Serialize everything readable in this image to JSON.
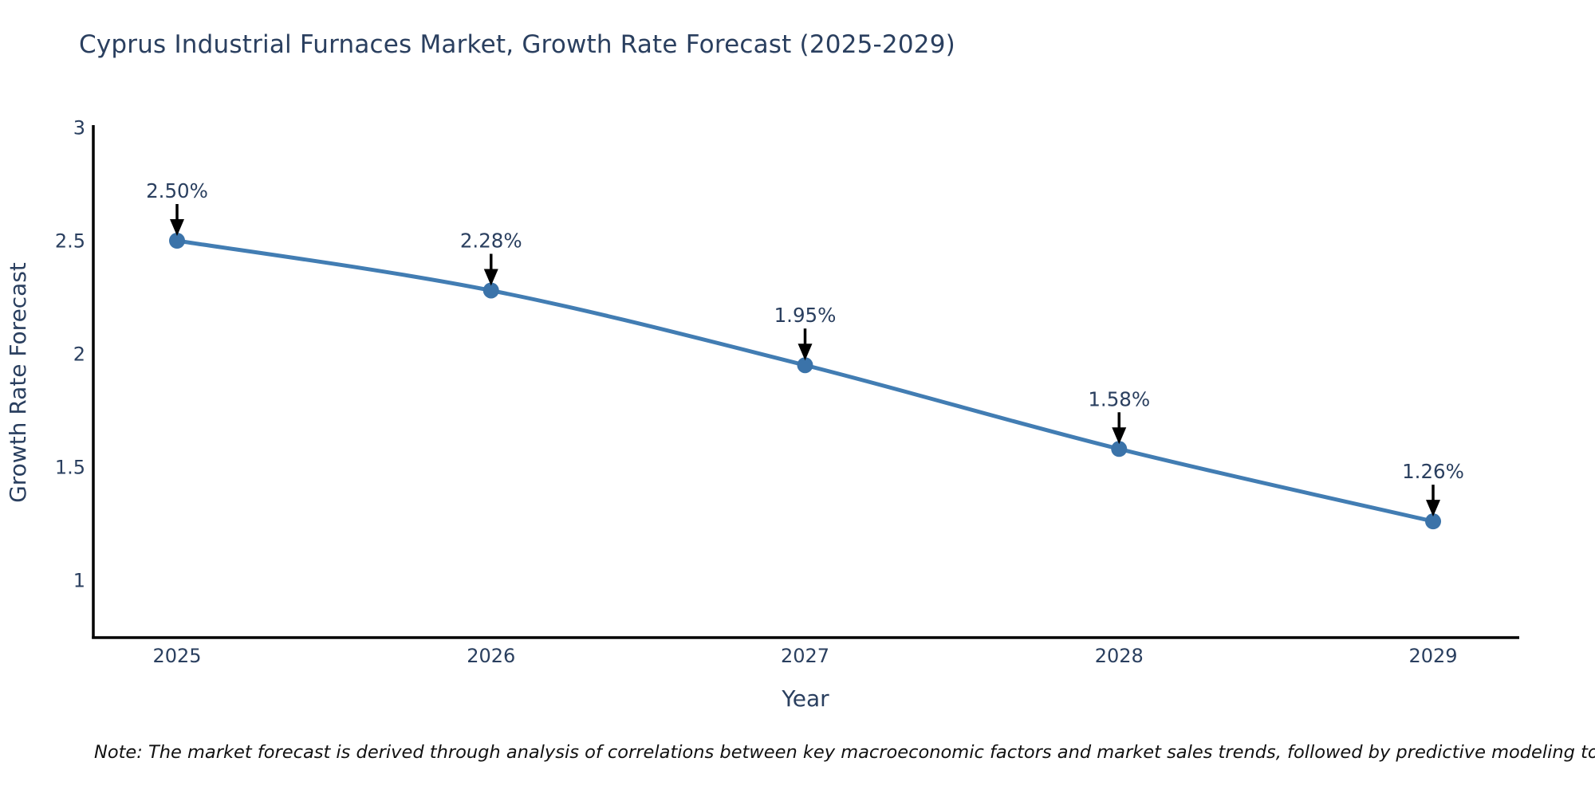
{
  "title": "Cyprus Industrial Furnaces Market, Growth Rate Forecast (2025-2029)",
  "note": "Note: The market forecast is derived through analysis of correlations between key macroeconomic factors and market sales trends, followed by predictive modeling to project future sales",
  "chart_data": {
    "type": "line",
    "x": [
      2025,
      2026,
      2027,
      2028,
      2029
    ],
    "values": [
      2.5,
      2.28,
      1.95,
      1.58,
      1.26
    ],
    "point_labels": [
      "2.50%",
      "2.28%",
      "1.95%",
      "1.58%",
      "1.26%"
    ],
    "categories": [
      "2025",
      "2026",
      "2027",
      "2028",
      "2029"
    ],
    "title": "Cyprus Industrial Furnaces Market, Growth Rate Forecast (2025-2029)",
    "xlabel": "Year",
    "ylabel": "Growth Rate Forecast",
    "yticks": [
      3,
      2.5,
      2,
      1.5,
      1
    ],
    "ytick_labels": [
      "3",
      "2.5",
      "2",
      "1.5",
      "1"
    ],
    "xtick_labels": [
      "2025",
      "2026",
      "2027",
      "2028",
      "2029"
    ],
    "ylim": [
      0.75,
      3.0
    ],
    "grid": false,
    "legend": "none",
    "colors": {
      "line": "#427db3",
      "marker": "#3b73a9",
      "arrow": "#000000",
      "axis": "#000000",
      "text": "#2a3f5f",
      "note_text": "#111111"
    }
  }
}
